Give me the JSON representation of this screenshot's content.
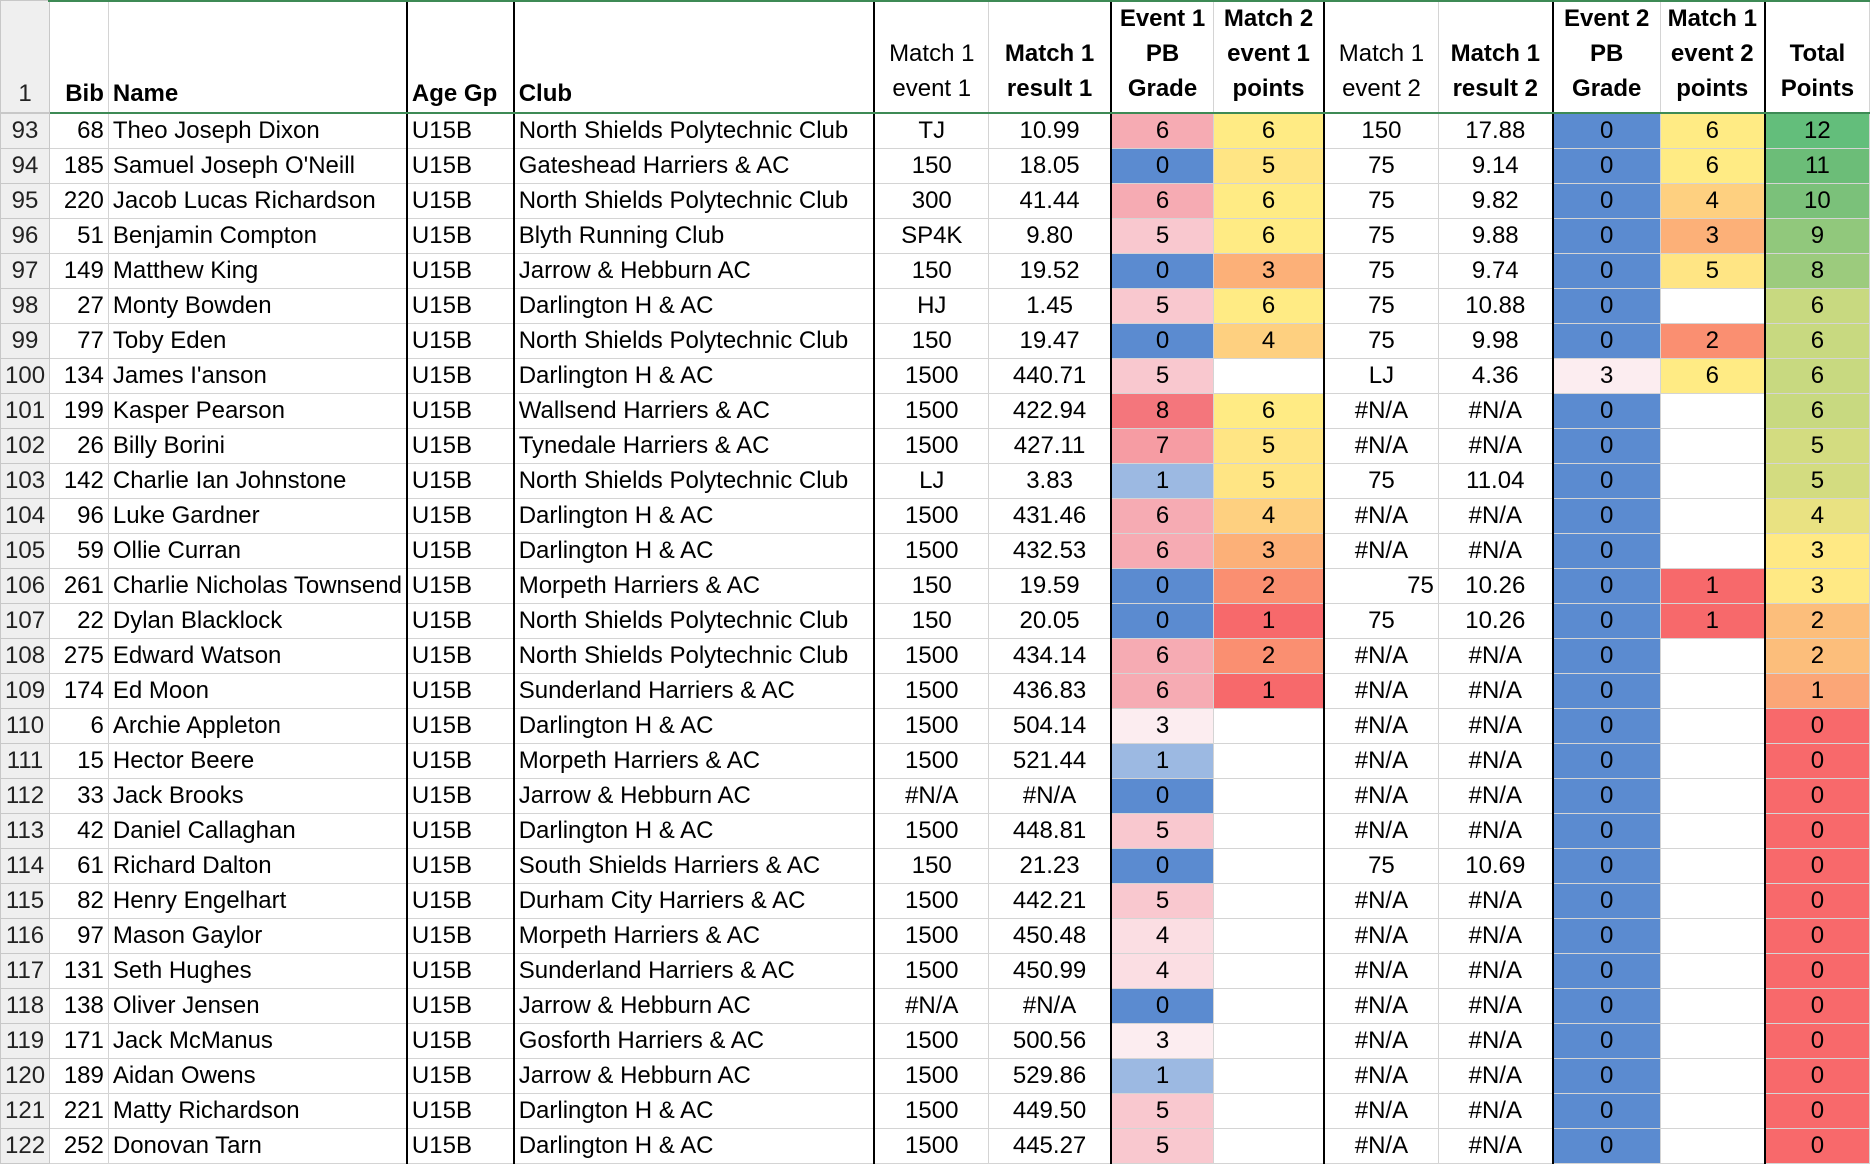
{
  "sheet": {
    "header": {
      "rownum": "1",
      "bib": "Bib",
      "name": "Name",
      "age": "Age Gp",
      "club": "Club",
      "m1e1": "Match 1 event 1",
      "m1r1": "Match 1 result 1",
      "e1pb": "Event 1 PB Grade",
      "m2e1p": "Match 2 event 1 points",
      "m1e2": "Match 1 event 2",
      "m1r2": "Match 1 result 2",
      "e2pb": "Event 2 PB Grade",
      "m1e2p": "Match 1 event 2 points",
      "total": "Total Points"
    },
    "colors": {
      "pb": {
        "0": "#5b8bd0",
        "1": "#9cb9e2",
        "3": "#fcedf0",
        "4": "#fbdee3",
        "5": "#f9c8cf",
        "6": "#f6abb3",
        "7": "#f69ca3",
        "8": "#f4767c"
      },
      "pts": {
        "1": "#f7696b",
        "2": "#fa8f71",
        "3": "#fcb078",
        "4": "#fed080",
        "5": "#ffe584",
        "6": "#ffeb84"
      },
      "total": {
        "0": "#f8696b",
        "1": "#fba677",
        "2": "#fcbe7b",
        "3": "#ffe984",
        "4": "#e9e282",
        "5": "#d3dc80",
        "6": "#c8d980",
        "8": "#9ccb7d",
        "9": "#91c87c",
        "10": "#7bc17a",
        "11": "#6cbd78",
        "12": "#63be7b"
      }
    },
    "rows": [
      {
        "rownum": "93",
        "bib": "68",
        "name": "Theo Joseph Dixon",
        "age": "U15B",
        "club": "North Shields Polytechnic Club",
        "m1e1": "TJ",
        "m1r1": "10.99",
        "e1pb": "6",
        "m2e1p": "6",
        "m1e2": "150",
        "m1r2": "17.88",
        "e2pb": "0",
        "m1e2p": "6",
        "total": "12"
      },
      {
        "rownum": "94",
        "bib": "185",
        "name": "Samuel Joseph O'Neill",
        "age": "U15B",
        "club": "Gateshead Harriers & AC",
        "m1e1": "150",
        "m1r1": "18.05",
        "e1pb": "0",
        "m2e1p": "5",
        "m1e2": "75",
        "m1r2": "9.14",
        "e2pb": "0",
        "m1e2p": "6",
        "total": "11"
      },
      {
        "rownum": "95",
        "bib": "220",
        "name": "Jacob Lucas Richardson",
        "age": "U15B",
        "club": "North Shields Polytechnic Club",
        "m1e1": "300",
        "m1r1": "41.44",
        "e1pb": "6",
        "m2e1p": "6",
        "m1e2": "75",
        "m1r2": "9.82",
        "e2pb": "0",
        "m1e2p": "4",
        "total": "10"
      },
      {
        "rownum": "96",
        "bib": "51",
        "name": "Benjamin Compton",
        "age": "U15B",
        "club": "Blyth Running Club",
        "m1e1": "SP4K",
        "m1r1": "9.80",
        "e1pb": "5",
        "m2e1p": "6",
        "m1e2": "75",
        "m1r2": "9.88",
        "e2pb": "0",
        "m1e2p": "3",
        "total": "9"
      },
      {
        "rownum": "97",
        "bib": "149",
        "name": "Matthew King",
        "age": "U15B",
        "club": "Jarrow & Hebburn AC",
        "m1e1": "150",
        "m1r1": "19.52",
        "e1pb": "0",
        "m2e1p": "3",
        "m1e2": "75",
        "m1r2": "9.74",
        "e2pb": "0",
        "m1e2p": "5",
        "total": "8"
      },
      {
        "rownum": "98",
        "bib": "27",
        "name": "Monty Bowden",
        "age": "U15B",
        "club": "Darlington H & AC",
        "m1e1": "HJ",
        "m1r1": "1.45",
        "e1pb": "5",
        "m2e1p": "6",
        "m1e2": "75",
        "m1r2": "10.88",
        "e2pb": "0",
        "m1e2p": "",
        "total": "6"
      },
      {
        "rownum": "99",
        "bib": "77",
        "name": "Toby Eden",
        "age": "U15B",
        "club": "North Shields Polytechnic Club",
        "m1e1": "150",
        "m1r1": "19.47",
        "e1pb": "0",
        "m2e1p": "4",
        "m1e2": "75",
        "m1r2": "9.98",
        "e2pb": "0",
        "m1e2p": "2",
        "total": "6"
      },
      {
        "rownum": "100",
        "bib": "134",
        "name": "James I'anson",
        "age": "U15B",
        "club": "Darlington H & AC",
        "m1e1": "1500",
        "m1r1": "440.71",
        "e1pb": "5",
        "m2e1p": "",
        "m1e2": "LJ",
        "m1r2": "4.36",
        "e2pb": "3",
        "m1e2p": "6",
        "total": "6"
      },
      {
        "rownum": "101",
        "bib": "199",
        "name": "Kasper Pearson",
        "age": "U15B",
        "club": "Wallsend Harriers & AC",
        "m1e1": "1500",
        "m1r1": "422.94",
        "e1pb": "8",
        "m2e1p": "6",
        "m1e2": "#N/A",
        "m1r2": "#N/A",
        "e2pb": "0",
        "m1e2p": "",
        "total": "6"
      },
      {
        "rownum": "102",
        "bib": "26",
        "name": "Billy Borini",
        "age": "U15B",
        "club": "Tynedale Harriers & AC",
        "m1e1": "1500",
        "m1r1": "427.11",
        "e1pb": "7",
        "m2e1p": "5",
        "m1e2": "#N/A",
        "m1r2": "#N/A",
        "e2pb": "0",
        "m1e2p": "",
        "total": "5"
      },
      {
        "rownum": "103",
        "bib": "142",
        "name": "Charlie Ian Johnstone",
        "age": "U15B",
        "club": "North Shields Polytechnic Club",
        "m1e1": "LJ",
        "m1r1": "3.83",
        "e1pb": "1",
        "m2e1p": "5",
        "m1e2": "75",
        "m1r2": "11.04",
        "e2pb": "0",
        "m1e2p": "",
        "total": "5"
      },
      {
        "rownum": "104",
        "bib": "96",
        "name": "Luke Gardner",
        "age": "U15B",
        "club": "Darlington H & AC",
        "m1e1": "1500",
        "m1r1": "431.46",
        "e1pb": "6",
        "m2e1p": "4",
        "m1e2": "#N/A",
        "m1r2": "#N/A",
        "e2pb": "0",
        "m1e2p": "",
        "total": "4"
      },
      {
        "rownum": "105",
        "bib": "59",
        "name": "Ollie Curran",
        "age": "U15B",
        "club": "Darlington H & AC",
        "m1e1": "1500",
        "m1r1": "432.53",
        "e1pb": "6",
        "m2e1p": "3",
        "m1e2": "#N/A",
        "m1r2": "#N/A",
        "e2pb": "0",
        "m1e2p": "",
        "total": "3"
      },
      {
        "rownum": "106",
        "bib": "261",
        "name": "Charlie Nicholas Townsend",
        "age": "U15B",
        "club": "Morpeth Harriers & AC",
        "m1e1": "150",
        "m1r1": "19.59",
        "e1pb": "0",
        "m2e1p": "2",
        "m1e2": "75",
        "m1r2": "10.26",
        "e2pb": "0",
        "m1e2p": "1",
        "total": "3",
        "m1e2Right": true
      },
      {
        "rownum": "107",
        "bib": "22",
        "name": "Dylan Blacklock",
        "age": "U15B",
        "club": "North Shields Polytechnic Club",
        "m1e1": "150",
        "m1r1": "20.05",
        "e1pb": "0",
        "m2e1p": "1",
        "m1e2": "75",
        "m1r2": "10.26",
        "e2pb": "0",
        "m1e2p": "1",
        "total": "2"
      },
      {
        "rownum": "108",
        "bib": "275",
        "name": "Edward Watson",
        "age": "U15B",
        "club": "North Shields Polytechnic Club",
        "m1e1": "1500",
        "m1r1": "434.14",
        "e1pb": "6",
        "m2e1p": "2",
        "m1e2": "#N/A",
        "m1r2": "#N/A",
        "e2pb": "0",
        "m1e2p": "",
        "total": "2"
      },
      {
        "rownum": "109",
        "bib": "174",
        "name": "Ed Moon",
        "age": "U15B",
        "club": "Sunderland Harriers & AC",
        "m1e1": "1500",
        "m1r1": "436.83",
        "e1pb": "6",
        "m2e1p": "1",
        "m1e2": "#N/A",
        "m1r2": "#N/A",
        "e2pb": "0",
        "m1e2p": "",
        "total": "1"
      },
      {
        "rownum": "110",
        "bib": "6",
        "name": "Archie Appleton",
        "age": "U15B",
        "club": "Darlington H & AC",
        "m1e1": "1500",
        "m1r1": "504.14",
        "e1pb": "3",
        "m2e1p": "",
        "m1e2": "#N/A",
        "m1r2": "#N/A",
        "e2pb": "0",
        "m1e2p": "",
        "total": "0"
      },
      {
        "rownum": "111",
        "bib": "15",
        "name": "Hector Beere",
        "age": "U15B",
        "club": "Morpeth Harriers & AC",
        "m1e1": "1500",
        "m1r1": "521.44",
        "e1pb": "1",
        "m2e1p": "",
        "m1e2": "#N/A",
        "m1r2": "#N/A",
        "e2pb": "0",
        "m1e2p": "",
        "total": "0"
      },
      {
        "rownum": "112",
        "bib": "33",
        "name": "Jack Brooks",
        "age": "U15B",
        "club": "Jarrow & Hebburn AC",
        "m1e1": "#N/A",
        "m1r1": "#N/A",
        "e1pb": "0",
        "m2e1p": "",
        "m1e2": "#N/A",
        "m1r2": "#N/A",
        "e2pb": "0",
        "m1e2p": "",
        "total": "0"
      },
      {
        "rownum": "113",
        "bib": "42",
        "name": "Daniel Callaghan",
        "age": "U15B",
        "club": "Darlington H & AC",
        "m1e1": "1500",
        "m1r1": "448.81",
        "e1pb": "5",
        "m2e1p": "",
        "m1e2": "#N/A",
        "m1r2": "#N/A",
        "e2pb": "0",
        "m1e2p": "",
        "total": "0"
      },
      {
        "rownum": "114",
        "bib": "61",
        "name": "Richard Dalton",
        "age": "U15B",
        "club": "South Shields Harriers & AC",
        "m1e1": "150",
        "m1r1": "21.23",
        "e1pb": "0",
        "m2e1p": "",
        "m1e2": "75",
        "m1r2": "10.69",
        "e2pb": "0",
        "m1e2p": "",
        "total": "0"
      },
      {
        "rownum": "115",
        "bib": "82",
        "name": "Henry Engelhart",
        "age": "U15B",
        "club": "Durham City Harriers & AC",
        "m1e1": "1500",
        "m1r1": "442.21",
        "e1pb": "5",
        "m2e1p": "",
        "m1e2": "#N/A",
        "m1r2": "#N/A",
        "e2pb": "0",
        "m1e2p": "",
        "total": "0"
      },
      {
        "rownum": "116",
        "bib": "97",
        "name": "Mason Gaylor",
        "age": "U15B",
        "club": "Morpeth Harriers & AC",
        "m1e1": "1500",
        "m1r1": "450.48",
        "e1pb": "4",
        "m2e1p": "",
        "m1e2": "#N/A",
        "m1r2": "#N/A",
        "e2pb": "0",
        "m1e2p": "",
        "total": "0"
      },
      {
        "rownum": "117",
        "bib": "131",
        "name": "Seth Hughes",
        "age": "U15B",
        "club": "Sunderland Harriers & AC",
        "m1e1": "1500",
        "m1r1": "450.99",
        "e1pb": "4",
        "m2e1p": "",
        "m1e2": "#N/A",
        "m1r2": "#N/A",
        "e2pb": "0",
        "m1e2p": "",
        "total": "0"
      },
      {
        "rownum": "118",
        "bib": "138",
        "name": "Oliver Jensen",
        "age": "U15B",
        "club": "Jarrow & Hebburn AC",
        "m1e1": "#N/A",
        "m1r1": "#N/A",
        "e1pb": "0",
        "m2e1p": "",
        "m1e2": "#N/A",
        "m1r2": "#N/A",
        "e2pb": "0",
        "m1e2p": "",
        "total": "0"
      },
      {
        "rownum": "119",
        "bib": "171",
        "name": "Jack McManus",
        "age": "U15B",
        "club": "Gosforth Harriers & AC",
        "m1e1": "1500",
        "m1r1": "500.56",
        "e1pb": "3",
        "m2e1p": "",
        "m1e2": "#N/A",
        "m1r2": "#N/A",
        "e2pb": "0",
        "m1e2p": "",
        "total": "0"
      },
      {
        "rownum": "120",
        "bib": "189",
        "name": "Aidan Owens",
        "age": "U15B",
        "club": "Jarrow & Hebburn AC",
        "m1e1": "1500",
        "m1r1": "529.86",
        "e1pb": "1",
        "m2e1p": "",
        "m1e2": "#N/A",
        "m1r2": "#N/A",
        "e2pb": "0",
        "m1e2p": "",
        "total": "0"
      },
      {
        "rownum": "121",
        "bib": "221",
        "name": "Matty Richardson",
        "age": "U15B",
        "club": "Darlington H & AC",
        "m1e1": "1500",
        "m1r1": "449.50",
        "e1pb": "5",
        "m2e1p": "",
        "m1e2": "#N/A",
        "m1r2": "#N/A",
        "e2pb": "0",
        "m1e2p": "",
        "total": "0"
      },
      {
        "rownum": "122",
        "bib": "252",
        "name": "Donovan Tarn",
        "age": "U15B",
        "club": "Darlington H & AC",
        "m1e1": "1500",
        "m1r1": "445.27",
        "e1pb": "5",
        "m2e1p": "",
        "m1e2": "#N/A",
        "m1r2": "#N/A",
        "e2pb": "0",
        "m1e2p": "",
        "total": "0"
      }
    ]
  }
}
